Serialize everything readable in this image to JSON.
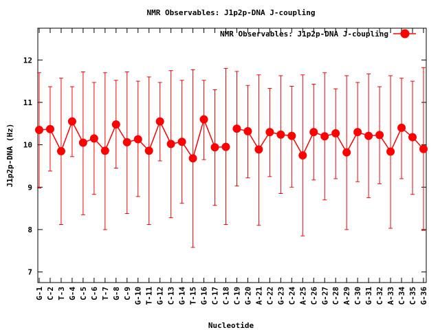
{
  "chart_data": {
    "type": "line",
    "title": "NMR Observables: J1p2p-DNA J-coupling",
    "xlabel": "Nucleotide",
    "ylabel": "J1p2p-DNA (Hz)",
    "ylim": [
      6.75,
      12.75
    ],
    "yticks": [
      7,
      8,
      9,
      10,
      11,
      12
    ],
    "legend_position": "top-right",
    "grid": false,
    "series": [
      {
        "name": "NMR Observables: J1p2p-DNA J-coupling",
        "color": "#ff0000",
        "segments": [
          [
            0,
            17
          ],
          [
            18,
            35
          ]
        ],
        "categories": [
          "G-1",
          "C-2",
          "T-3",
          "G-4",
          "C-5",
          "C-6",
          "T-7",
          "G-8",
          "C-9",
          "G-10",
          "T-11",
          "G-12",
          "C-13",
          "G-14",
          "T-15",
          "G-16",
          "C-17",
          "C-18",
          "C-19",
          "G-20",
          "A-21",
          "C-22",
          "G-23",
          "C-24",
          "A-25",
          "C-26",
          "G-27",
          "C-28",
          "A-29",
          "C-30",
          "G-31",
          "C-32",
          "A-33",
          "C-34",
          "C-35",
          "G-36"
        ],
        "values": [
          10.35,
          10.37,
          9.85,
          10.55,
          10.05,
          10.15,
          9.86,
          10.48,
          10.06,
          10.13,
          9.86,
          10.55,
          10.02,
          10.07,
          9.68,
          10.6,
          9.94,
          9.95,
          10.38,
          10.32,
          9.89,
          10.3,
          10.24,
          10.21,
          9.75,
          10.3,
          10.2,
          10.27,
          9.82,
          10.3,
          10.21,
          10.23,
          9.84,
          10.4,
          10.18,
          9.9
        ],
        "error_low": [
          8.98,
          9.38,
          8.12,
          9.72,
          8.35,
          8.83,
          8.0,
          9.45,
          8.38,
          8.78,
          8.12,
          9.62,
          8.28,
          8.62,
          7.58,
          9.65,
          8.57,
          8.12,
          9.03,
          9.22,
          8.1,
          9.25,
          8.85,
          9.0,
          7.85,
          9.17,
          8.7,
          9.2,
          8.0,
          9.13,
          8.75,
          9.08,
          8.03,
          9.2,
          8.83,
          7.98
        ],
        "error_high": [
          11.7,
          11.37,
          11.57,
          11.37,
          11.72,
          11.47,
          11.7,
          11.52,
          11.72,
          11.5,
          11.6,
          11.47,
          11.75,
          11.52,
          11.77,
          11.52,
          11.3,
          11.8,
          11.73,
          11.4,
          11.65,
          11.33,
          11.63,
          11.38,
          11.65,
          11.43,
          11.7,
          11.32,
          11.63,
          11.47,
          11.67,
          11.37,
          11.63,
          11.57,
          11.5,
          11.82
        ]
      }
    ]
  }
}
